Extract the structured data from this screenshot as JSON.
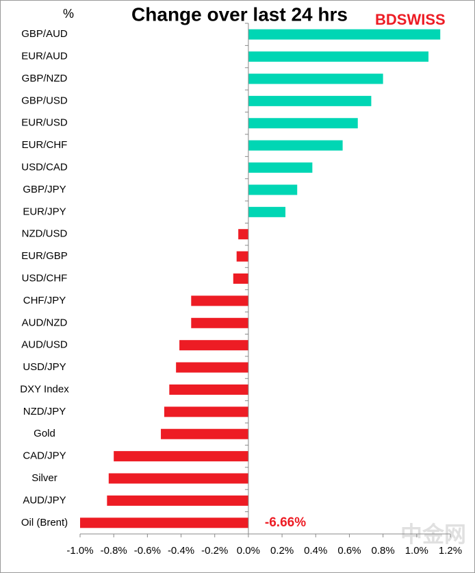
{
  "chart_data": {
    "type": "barh",
    "title": "Change over last 24 hrs",
    "y_axis_label": "%",
    "logo": "BDSWISS",
    "watermark": "中金网",
    "categories": [
      "GBP/AUD",
      "EUR/AUD",
      "GBP/NZD",
      "GBP/USD",
      "EUR/USD",
      "EUR/CHF",
      "USD/CAD",
      "GBP/JPY",
      "EUR/JPY",
      "NZD/USD",
      "EUR/GBP",
      "USD/CHF",
      "CHF/JPY",
      "AUD/NZD",
      "AUD/USD",
      "USD/JPY",
      "DXY Index",
      "NZD/JPY",
      "Gold",
      "CAD/JPY",
      "Silver",
      "AUD/JPY",
      "Oil (Brent)"
    ],
    "values": [
      1.14,
      1.07,
      0.8,
      0.73,
      0.65,
      0.56,
      0.38,
      0.29,
      0.22,
      -0.06,
      -0.07,
      -0.09,
      -0.34,
      -0.34,
      -0.41,
      -0.43,
      -0.47,
      -0.5,
      -0.52,
      -0.8,
      -0.83,
      -0.84,
      -6.66
    ],
    "value_labels": [
      null,
      null,
      null,
      null,
      null,
      null,
      null,
      null,
      null,
      null,
      null,
      null,
      null,
      null,
      null,
      null,
      null,
      null,
      null,
      null,
      null,
      null,
      "-6.66%"
    ],
    "positive_color": "#00d6b4",
    "negative_color": "#ed1c24",
    "xlim": [
      -1.0,
      1.2
    ],
    "xticks": [
      {
        "value": -1.0,
        "label": "-1.0%"
      },
      {
        "value": -0.8,
        "label": "-0.8%"
      },
      {
        "value": -0.6,
        "label": "-0.6%"
      },
      {
        "value": -0.4,
        "label": "-0.4%"
      },
      {
        "value": -0.2,
        "label": "-0.2%"
      },
      {
        "value": 0,
        "label": "0.0%"
      },
      {
        "value": 0.2,
        "label": "0.2%"
      },
      {
        "value": 0.4,
        "label": "0.4%"
      },
      {
        "value": 0.6,
        "label": "0.6%"
      },
      {
        "value": 0.8,
        "label": "0.8%"
      },
      {
        "value": 1.0,
        "label": "1.0%"
      },
      {
        "value": 1.2,
        "label": "1.2%"
      }
    ],
    "grid": false
  }
}
